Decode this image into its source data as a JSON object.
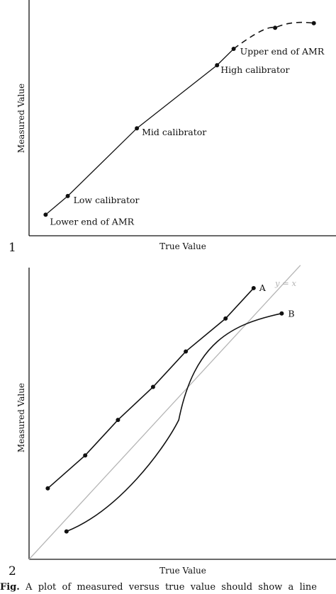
{
  "panels": [
    {
      "number": "1",
      "xlabel": "True Value",
      "ylabel": "Measured Value"
    },
    {
      "number": "2",
      "xlabel": "True Value",
      "ylabel": "Measured Value",
      "identity_label": "y = x"
    }
  ],
  "caption": {
    "bold": "Fig.",
    "text": "  A  plot  of  measured  versus  true  value  should  show  a  line"
  },
  "chart_data": [
    {
      "type": "line",
      "title": "",
      "xlabel": "True Value",
      "ylabel": "Measured Value",
      "xlim": [
        0,
        100
      ],
      "ylim": [
        0,
        100
      ],
      "grid": false,
      "series": [
        {
          "x": [
            6,
            14,
            39,
            68,
            74
          ],
          "y": [
            9,
            17,
            46,
            73,
            80
          ],
          "point_labels": [
            "Lower end of AMR",
            "Low calibrator",
            "Mid calibrator",
            "High calibrator",
            "Upper end of AMR"
          ],
          "style": "solid",
          "color": "#111111"
        },
        {
          "x": [
            74,
            89,
            103
          ],
          "y": [
            80,
            89,
            91
          ],
          "style": "dashed",
          "color": "#111111"
        }
      ]
    },
    {
      "type": "line",
      "title": "",
      "xlabel": "True Value",
      "ylabel": "Measured Value",
      "xlim": [
        0,
        100
      ],
      "ylim": [
        0,
        100
      ],
      "grid": false,
      "series": [
        {
          "name": "A",
          "x": [
            8,
            24,
            38,
            53,
            67,
            84,
            96
          ],
          "y": [
            28,
            41,
            55,
            68,
            82,
            95,
            107
          ],
          "color": "#111111",
          "markers": true
        },
        {
          "name": "B",
          "x": [
            16,
            64,
            108
          ],
          "y": [
            11,
            55,
            97
          ],
          "color": "#111111",
          "markers": true
        },
        {
          "name": "y = x",
          "x": [
            0,
            100
          ],
          "y": [
            0,
            100
          ],
          "color": "#b5b5b5",
          "markers": false
        }
      ]
    }
  ]
}
